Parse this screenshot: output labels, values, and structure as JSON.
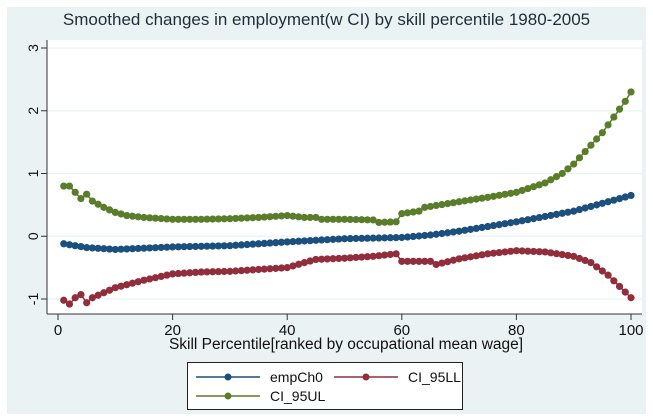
{
  "chart_data": {
    "type": "line",
    "title": "Smoothed changes in employment(w CI) by skill percentile 1980-2005",
    "xlabel": "Skill Percentile[ranked by occupational mean wage]",
    "ylabel": "",
    "xlim": [
      0,
      100
    ],
    "ylim": [
      -1.3,
      3.1
    ],
    "xticks": [
      0,
      20,
      40,
      60,
      80,
      100
    ],
    "yticks": [
      -1,
      0,
      1,
      2,
      3
    ],
    "xtick_labels": [
      "0",
      "20",
      "40",
      "60",
      "80",
      "100"
    ],
    "ytick_labels": [
      "-1",
      "0",
      "1",
      "2",
      "3"
    ],
    "grid": true,
    "legend_position": "bottom",
    "series": [
      {
        "name": "empCh0",
        "color": "#1a4f7e",
        "anchors_x": [
          1,
          5,
          10,
          20,
          30,
          40,
          50,
          60,
          65,
          70,
          80,
          90,
          100
        ],
        "anchors_y": [
          -0.12,
          -0.18,
          -0.21,
          -0.17,
          -0.15,
          -0.09,
          -0.04,
          -0.02,
          0.02,
          0.08,
          0.23,
          0.4,
          0.65
        ]
      },
      {
        "name": "CI_95LL",
        "color": "#922d3c",
        "anchors_x": [
          1,
          2,
          3,
          4,
          5,
          6,
          8,
          10,
          15,
          20,
          25,
          30,
          35,
          40,
          43,
          45,
          50,
          55,
          59,
          60,
          65,
          66,
          70,
          75,
          80,
          85,
          90,
          93,
          96,
          98,
          100
        ],
        "anchors_y": [
          -1.02,
          -1.08,
          -0.98,
          -0.93,
          -1.06,
          -0.98,
          -0.9,
          -0.82,
          -0.7,
          -0.6,
          -0.57,
          -0.56,
          -0.53,
          -0.5,
          -0.42,
          -0.37,
          -0.35,
          -0.32,
          -0.28,
          -0.4,
          -0.4,
          -0.45,
          -0.36,
          -0.28,
          -0.23,
          -0.25,
          -0.32,
          -0.42,
          -0.62,
          -0.8,
          -0.98
        ]
      },
      {
        "name": "CI_95UL",
        "color": "#5a7d2a",
        "anchors_x": [
          1,
          2,
          3,
          4,
          5,
          6,
          8,
          10,
          12,
          15,
          20,
          25,
          30,
          35,
          40,
          43,
          45,
          46,
          50,
          55,
          56,
          59,
          60,
          63,
          64,
          70,
          75,
          80,
          85,
          88,
          90,
          93,
          95,
          97,
          99,
          100
        ],
        "anchors_y": [
          0.8,
          0.8,
          0.7,
          0.6,
          0.67,
          0.56,
          0.46,
          0.38,
          0.33,
          0.3,
          0.27,
          0.27,
          0.28,
          0.3,
          0.33,
          0.3,
          0.3,
          0.27,
          0.27,
          0.26,
          0.22,
          0.23,
          0.36,
          0.4,
          0.46,
          0.55,
          0.62,
          0.7,
          0.85,
          1.0,
          1.15,
          1.45,
          1.65,
          1.9,
          2.15,
          2.3
        ]
      }
    ]
  }
}
